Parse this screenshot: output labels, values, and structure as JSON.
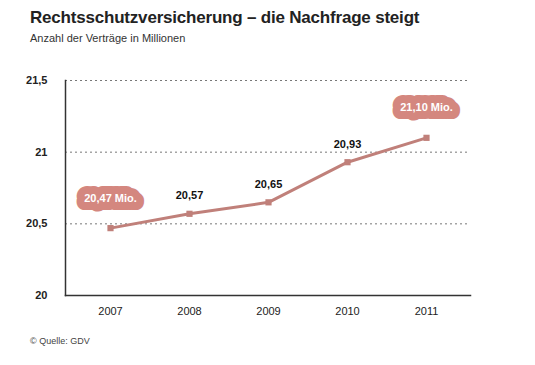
{
  "chart_data": {
    "type": "line",
    "title": "Rechtsschutzversicherung – die Nachfrage steigt",
    "subtitle": "Anzahl der Verträge in Millionen",
    "source": "© Quelle: GDV",
    "categories": [
      "2007",
      "2008",
      "2009",
      "2010",
      "2011"
    ],
    "values": [
      20.47,
      20.57,
      20.65,
      20.93,
      21.1
    ],
    "value_labels": [
      "20,47 Mio.",
      "20,57",
      "20,65",
      "20,93",
      "21,10 Mio."
    ],
    "color": "#c0807a",
    "marker": "square",
    "ylim": [
      20,
      21.5
    ],
    "yticks": [
      20,
      {
        "value": 20.5,
        "label": "20,5"
      },
      21,
      {
        "value": 21.5,
        "label": "21,5"
      }
    ],
    "grid": true,
    "data_labels": true
  }
}
